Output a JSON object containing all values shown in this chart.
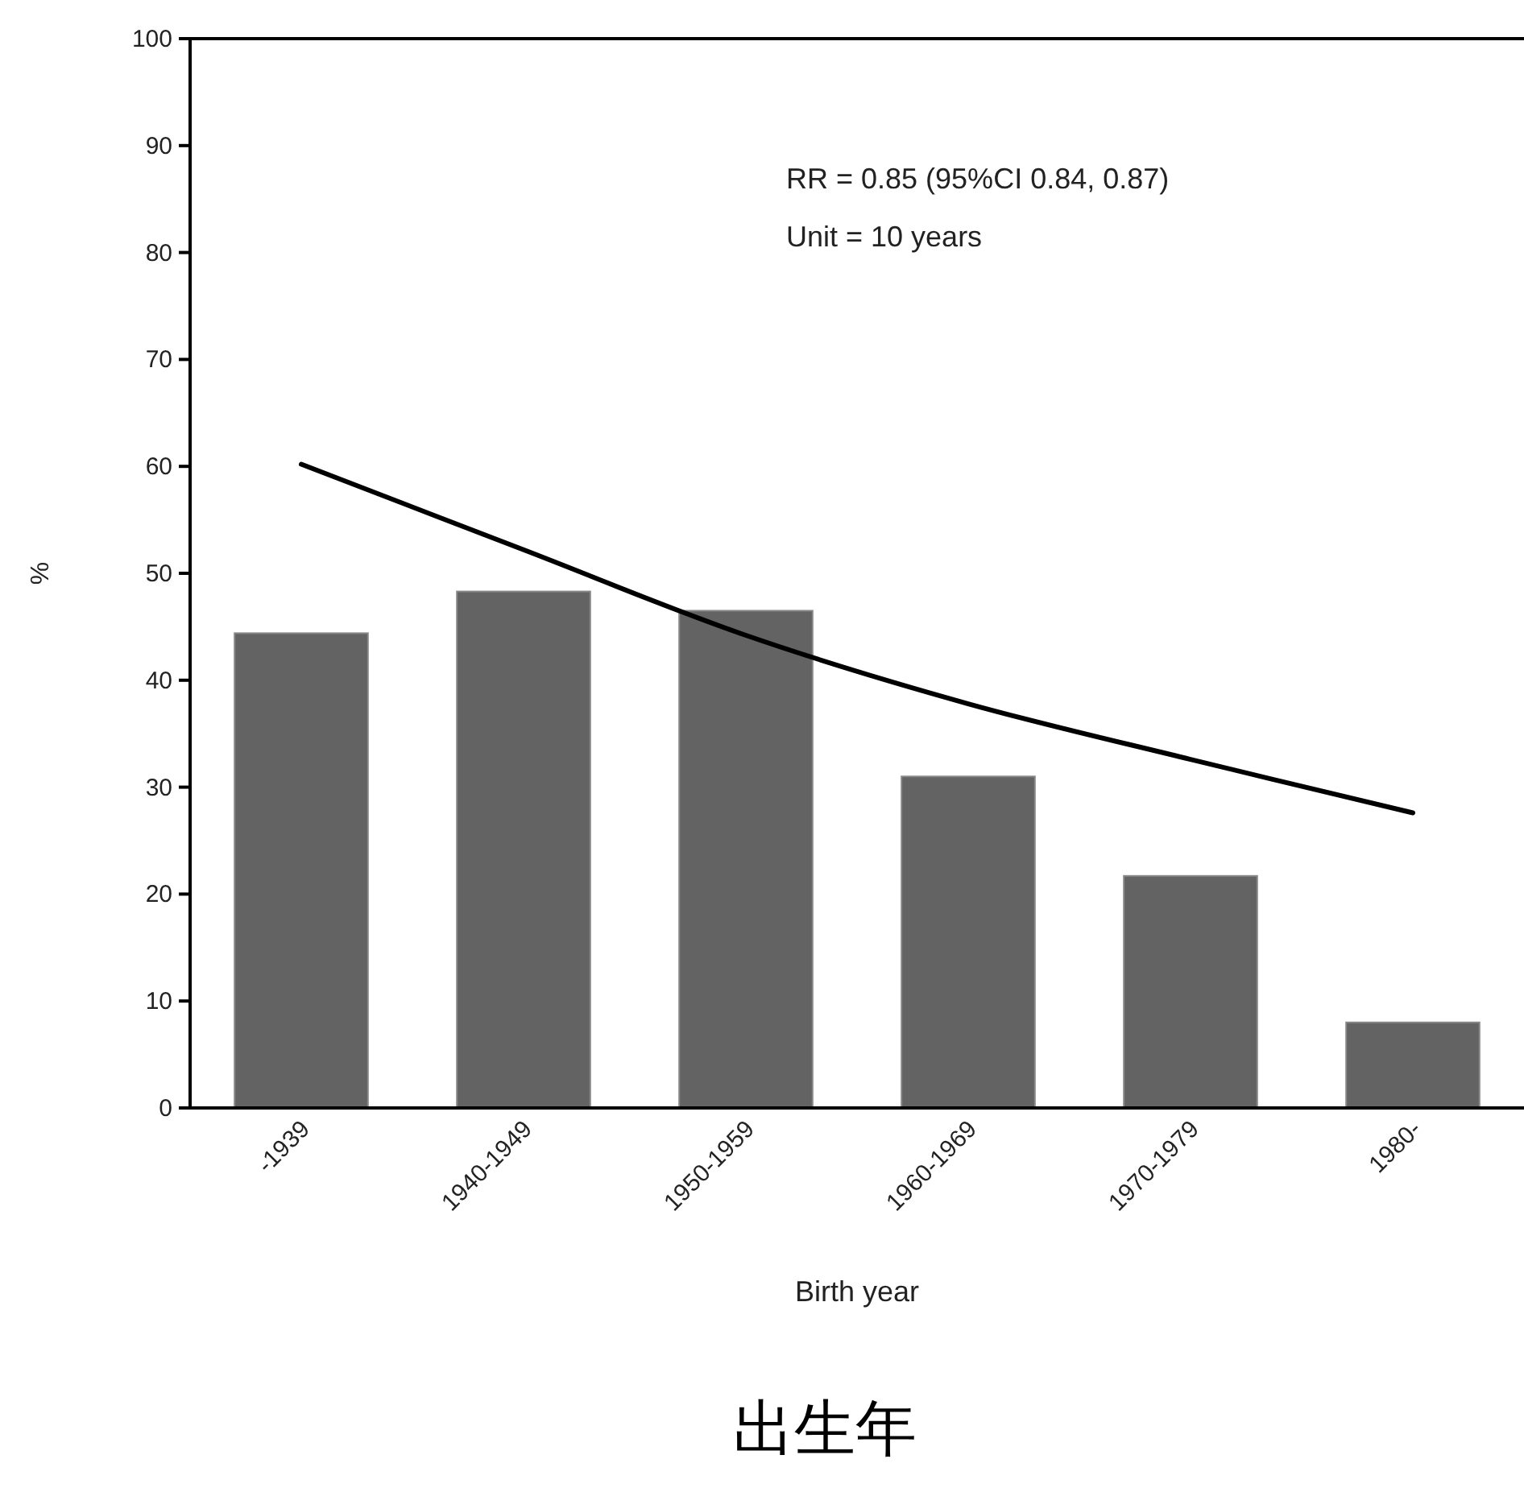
{
  "chart_data": {
    "type": "bar",
    "xlabel": "Birth year",
    "ylabel": "%",
    "categories": [
      "-1939",
      "1940-1949",
      "1950-1959",
      "1960-1969",
      "1970-1979",
      "1980-"
    ],
    "series": [
      {
        "color": "#636363",
        "values": [
          44.4,
          48.3,
          46.5,
          31.0,
          21.7,
          8.0
        ]
      },
      {
        "type": "line",
        "color": "#000000",
        "values": [
          60.2,
          52.2,
          44.2,
          37.8,
          32.6,
          27.6
        ]
      }
    ],
    "ylim": [
      0,
      100
    ],
    "yticks": [
      0,
      10,
      20,
      30,
      40,
      50,
      60,
      70,
      80,
      90,
      100
    ],
    "grid": false,
    "marker": "none",
    "line_style": "solid",
    "annotations": [
      "RR = 0.85 (95%CI 0.84, 0.87)",
      "Unit = 10 years",
      "出生年"
    ]
  }
}
